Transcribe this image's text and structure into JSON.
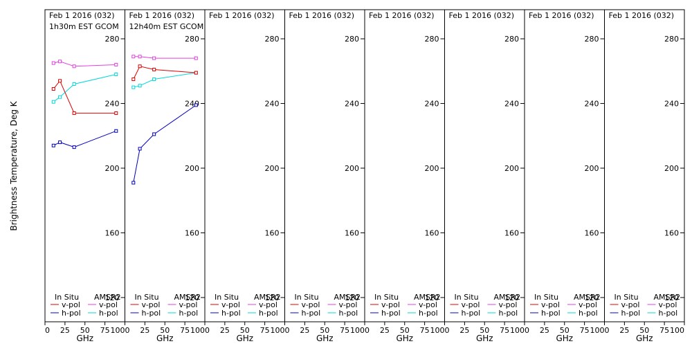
{
  "chart_data": {
    "type": "line",
    "ylabel": "Brightness Temperature, Deg K",
    "xlabel": "GHz",
    "xlim": [
      0,
      100
    ],
    "ylim": [
      105,
      298
    ],
    "x_ticks": [
      0,
      25,
      50,
      75,
      100
    ],
    "y_ticks": [
      120,
      160,
      200,
      240,
      280
    ],
    "legend": {
      "in_situ_label": "In Situ",
      "sensor_label": "AMSR2",
      "in_situ_v": "v-pol",
      "in_situ_h": "h-pol",
      "sensor_v": "v-pol",
      "sensor_h": "h-pol",
      "placement": "bottom"
    },
    "colors": {
      "in_situ_v": "#dd0000",
      "in_situ_h": "#0000bb",
      "sensor_v": "#e040e0",
      "sensor_h": "#00d8d8"
    },
    "panels": [
      {
        "title": "Feb 1 2016 (032)",
        "subtitle": "1h30m EST GCOM",
        "series": [
          {
            "key": "sensor_v",
            "name": "AMSR2 v-pol",
            "x": [
              10.65,
              18.7,
              36.5,
              89.0
            ],
            "y": [
              265,
              266,
              263,
              264
            ]
          },
          {
            "key": "sensor_h",
            "name": "AMSR2 h-pol",
            "x": [
              10.65,
              18.7,
              36.5,
              89.0
            ],
            "y": [
              241,
              244,
              252,
              258
            ]
          },
          {
            "key": "in_situ_v",
            "name": "In Situ v-pol",
            "x": [
              10.65,
              18.7,
              36.5,
              89.0
            ],
            "y": [
              249,
              254,
              234,
              234
            ]
          },
          {
            "key": "in_situ_h",
            "name": "In Situ h-pol",
            "x": [
              10.65,
              18.7,
              36.5,
              89.0
            ],
            "y": [
              214,
              216,
              213,
              223
            ]
          }
        ]
      },
      {
        "title": "Feb 1 2016 (032)",
        "subtitle": "12h40m EST GCOM",
        "series": [
          {
            "key": "sensor_v",
            "name": "AMSR2 v-pol",
            "x": [
              10.65,
              18.7,
              36.5,
              89.0
            ],
            "y": [
              269,
              269,
              268,
              268
            ]
          },
          {
            "key": "sensor_h",
            "name": "AMSR2 h-pol",
            "x": [
              10.65,
              18.7,
              36.5,
              89.0
            ],
            "y": [
              250,
              251,
              255,
              259
            ]
          },
          {
            "key": "in_situ_v",
            "name": "In Situ v-pol",
            "x": [
              10.65,
              18.7,
              36.5,
              89.0
            ],
            "y": [
              255,
              263,
              261,
              259
            ]
          },
          {
            "key": "in_situ_h",
            "name": "In Situ h-pol",
            "x": [
              10.65,
              18.7,
              36.5,
              89.0
            ],
            "y": [
              191,
              212,
              221,
              239
            ]
          }
        ]
      },
      {
        "title": "Feb 1 2016 (032)",
        "subtitle": "",
        "series": []
      },
      {
        "title": "Feb 1 2016 (032)",
        "subtitle": "",
        "series": []
      },
      {
        "title": "Feb 1 2016 (032)",
        "subtitle": "",
        "series": []
      },
      {
        "title": "Feb 1 2016 (032)",
        "subtitle": "",
        "series": []
      },
      {
        "title": "Feb 1 2016 (032)",
        "subtitle": "",
        "series": []
      },
      {
        "title": "Feb 1 2016 (032)",
        "subtitle": "",
        "series": []
      }
    ]
  }
}
